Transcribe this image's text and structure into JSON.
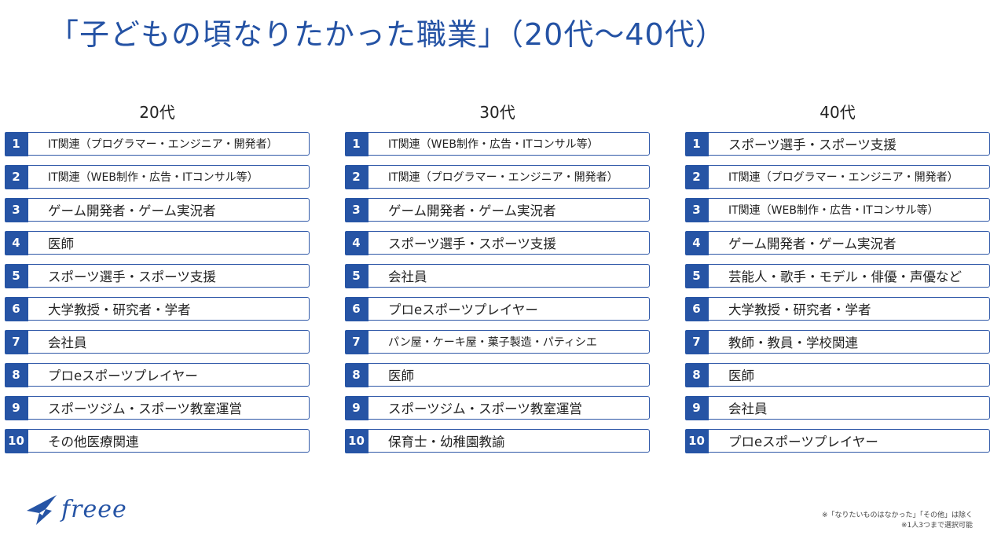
{
  "title": "「子どもの頃なりたかった職業」（20代～40代）",
  "columns": [
    {
      "heading": "20代",
      "items": [
        {
          "rank": "1",
          "label": "IT関連（プログラマー・エンジニア・開発者）"
        },
        {
          "rank": "2",
          "label": "IT関連（WEB制作・広告・ITコンサル等）"
        },
        {
          "rank": "3",
          "label": "ゲーム開発者・ゲーム実況者"
        },
        {
          "rank": "4",
          "label": "医師"
        },
        {
          "rank": "5",
          "label": "スポーツ選手・スポーツ支援"
        },
        {
          "rank": "6",
          "label": "大学教授・研究者・学者"
        },
        {
          "rank": "7",
          "label": "会社員"
        },
        {
          "rank": "8",
          "label": "プロeスポーツプレイヤー"
        },
        {
          "rank": "9",
          "label": "スポーツジム・スポーツ教室運営"
        },
        {
          "rank": "10",
          "label": "その他医療関連"
        }
      ]
    },
    {
      "heading": "30代",
      "items": [
        {
          "rank": "1",
          "label": "IT関連（WEB制作・広告・ITコンサル等）"
        },
        {
          "rank": "2",
          "label": "IT関連（プログラマー・エンジニア・開発者）"
        },
        {
          "rank": "3",
          "label": "ゲーム開発者・ゲーム実況者"
        },
        {
          "rank": "4",
          "label": "スポーツ選手・スポーツ支援"
        },
        {
          "rank": "5",
          "label": "会社員"
        },
        {
          "rank": "6",
          "label": "プロeスポーツプレイヤー"
        },
        {
          "rank": "7",
          "label": "パン屋・ケーキ屋・菓子製造・パティシエ"
        },
        {
          "rank": "8",
          "label": "医師"
        },
        {
          "rank": "9",
          "label": "スポーツジム・スポーツ教室運営"
        },
        {
          "rank": "10",
          "label": "保育士・幼稚園教諭"
        }
      ]
    },
    {
      "heading": "40代",
      "items": [
        {
          "rank": "1",
          "label": "スポーツ選手・スポーツ支援"
        },
        {
          "rank": "2",
          "label": "IT関連（プログラマー・エンジニア・開発者）"
        },
        {
          "rank": "3",
          "label": "IT関連（WEB制作・広告・ITコンサル等）"
        },
        {
          "rank": "4",
          "label": "ゲーム開発者・ゲーム実況者"
        },
        {
          "rank": "5",
          "label": "芸能人・歌手・モデル・俳優・声優など"
        },
        {
          "rank": "6",
          "label": "大学教授・研究者・学者"
        },
        {
          "rank": "7",
          "label": "教師・教員・学校関連"
        },
        {
          "rank": "8",
          "label": "医師"
        },
        {
          "rank": "9",
          "label": "会社員"
        },
        {
          "rank": "10",
          "label": "プロeスポーツプレイヤー"
        }
      ]
    }
  ],
  "logo": {
    "text": "freee",
    "icon": "freee-bird-logo-icon",
    "color": "#2654a5"
  },
  "footnotes": {
    "line1": "※「なりたいものはなかった」「その他」は除く",
    "line2": "※1人3つまで選択可能"
  },
  "colors": {
    "accent": "#2654a5",
    "border": "#2f58a8",
    "title": "#2452a4"
  }
}
